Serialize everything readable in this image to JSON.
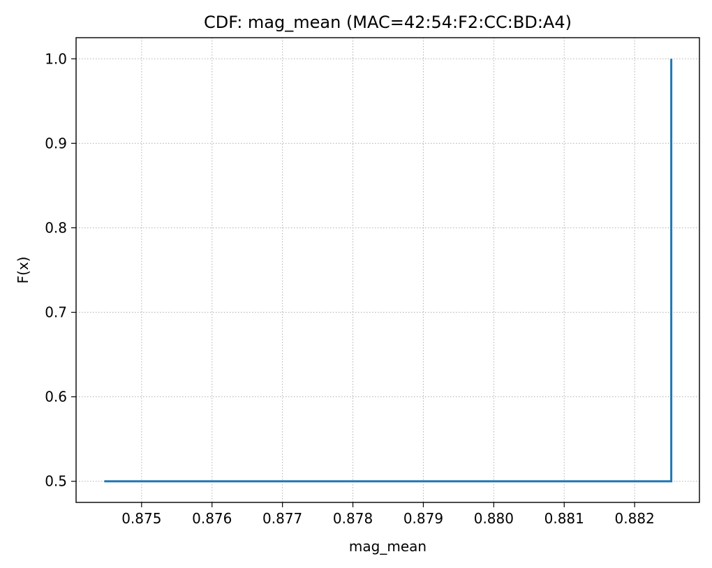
{
  "chart_data": {
    "type": "line",
    "title": "CDF: mag_mean (MAC=42:54:F2:CC:BD:A4)",
    "xlabel": "mag_mean",
    "ylabel": "F(x)",
    "xlim": [
      0.87407,
      0.88292
    ],
    "ylim": [
      0.475,
      1.025
    ],
    "x_ticks": [
      0.875,
      0.876,
      0.877,
      0.878,
      0.879,
      0.88,
      0.881,
      0.882
    ],
    "x_tick_labels": [
      "0.875",
      "0.876",
      "0.877",
      "0.878",
      "0.879",
      "0.880",
      "0.881",
      "0.882"
    ],
    "y_ticks": [
      0.5,
      0.6,
      0.7,
      0.8,
      0.9,
      1.0
    ],
    "y_tick_labels": [
      "0.5",
      "0.6",
      "0.7",
      "0.8",
      "0.9",
      "1.0"
    ],
    "grid": true,
    "series": [
      {
        "color": "#1f77b4",
        "x": [
          0.87447,
          0.88252,
          0.88252
        ],
        "y": [
          0.5,
          0.5,
          1.0
        ]
      }
    ]
  }
}
